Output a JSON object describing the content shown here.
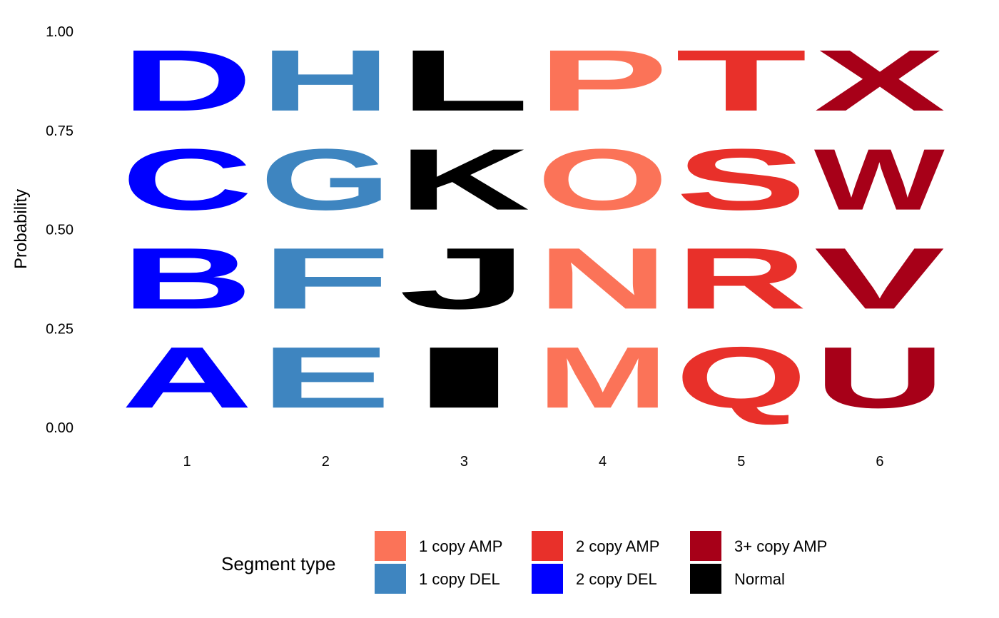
{
  "chart_data": {
    "type": "sequence-logo",
    "ylabel": "Probability",
    "xlabel": "",
    "ylim": [
      0,
      1
    ],
    "y_ticks": [
      "0.00",
      "0.25",
      "0.50",
      "0.75",
      "1.00"
    ],
    "y_tick_values": [
      0,
      0.25,
      0.5,
      0.75,
      1
    ],
    "positions": [
      1,
      2,
      3,
      4,
      5,
      6
    ],
    "columns": [
      {
        "position": 1,
        "segment_type": "2 copy DEL",
        "letters": [
          {
            "letter": "A",
            "probability": 0.25
          },
          {
            "letter": "B",
            "probability": 0.25
          },
          {
            "letter": "C",
            "probability": 0.25
          },
          {
            "letter": "D",
            "probability": 0.25
          }
        ]
      },
      {
        "position": 2,
        "segment_type": "1 copy DEL",
        "letters": [
          {
            "letter": "E",
            "probability": 0.25
          },
          {
            "letter": "F",
            "probability": 0.25
          },
          {
            "letter": "G",
            "probability": 0.25
          },
          {
            "letter": "H",
            "probability": 0.25
          }
        ]
      },
      {
        "position": 3,
        "segment_type": "Normal",
        "letters": [
          {
            "letter": "I",
            "probability": 0.25
          },
          {
            "letter": "J",
            "probability": 0.25
          },
          {
            "letter": "K",
            "probability": 0.25
          },
          {
            "letter": "L",
            "probability": 0.25
          }
        ]
      },
      {
        "position": 4,
        "segment_type": "1 copy AMP",
        "letters": [
          {
            "letter": "M",
            "probability": 0.25
          },
          {
            "letter": "N",
            "probability": 0.25
          },
          {
            "letter": "O",
            "probability": 0.25
          },
          {
            "letter": "P",
            "probability": 0.25
          }
        ]
      },
      {
        "position": 5,
        "segment_type": "2 copy AMP",
        "letters": [
          {
            "letter": "Q",
            "probability": 0.25
          },
          {
            "letter": "R",
            "probability": 0.25
          },
          {
            "letter": "S",
            "probability": 0.25
          },
          {
            "letter": "T",
            "probability": 0.25
          }
        ]
      },
      {
        "position": 6,
        "segment_type": "3+ copy AMP",
        "letters": [
          {
            "letter": "U",
            "probability": 0.25
          },
          {
            "letter": "V",
            "probability": 0.25
          },
          {
            "letter": "W",
            "probability": 0.25
          },
          {
            "letter": "X",
            "probability": 0.25
          }
        ]
      }
    ],
    "legend": {
      "title": "Segment type",
      "position": "bottom",
      "items": [
        {
          "label": "1 copy AMP",
          "color": "#FB7358"
        },
        {
          "label": "1 copy DEL",
          "color": "#3E85C0"
        },
        {
          "label": "2 copy AMP",
          "color": "#E8302A"
        },
        {
          "label": "2 copy DEL",
          "color": "#0000FF"
        },
        {
          "label": "3+ copy AMP",
          "color": "#A70018"
        },
        {
          "label": "Normal",
          "color": "#000000"
        }
      ]
    },
    "grid": false
  }
}
